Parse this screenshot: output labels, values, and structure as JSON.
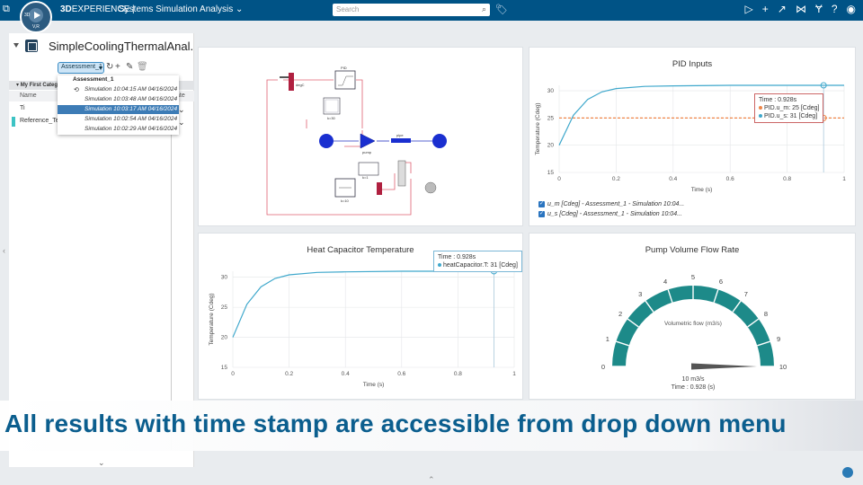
{
  "topbar": {
    "brand_bold": "3D",
    "brand_rest": "EXPERIENCE |",
    "app_title": "Systems Simulation Analysis ⌄",
    "search_placeholder": "Search",
    "compass_label": "3D",
    "compass_version": "V,R",
    "brand_color": "#005386"
  },
  "left_panel": {
    "model_title": "SimpleCoolingThermalAnal...",
    "assessment_select": "Assessment_1",
    "group_header": "My First Categ",
    "column_name": "Name",
    "column_value": "ate",
    "rows": [
      "Ti",
      "Reference_Te..."
    ]
  },
  "dropdown": {
    "header": "Assessment_1",
    "items": [
      "Simulation 10:04:15 AM 04/16/2024",
      "Simulation 10:03:48 AM 04/16/2024",
      "Simulation 10:03:17 AM 04/16/2024",
      "Simulation 10:02:54 AM 04/16/2024",
      "Simulation 10:02:29 AM 04/16/2024"
    ],
    "selected_index": 2
  },
  "diagram": {
    "labels": [
      "degC",
      "PID",
      "k=30",
      "pump",
      "pipe",
      "k=10",
      "k=1"
    ]
  },
  "pid_inputs": {
    "title": "PID Inputs",
    "tooltip_time": "Time : 0.928s",
    "tooltip_m": "PID.u_m: 25 [Cdeg]",
    "tooltip_s": "PID.u_s: 31 [Cdeg]",
    "legend": [
      "u_m [Cdeg] - Assessment_1 - Simulation 10:04...",
      "u_s [Cdeg] - Assessment_1 - Simulation 10:04..."
    ]
  },
  "heat_cap": {
    "title": "Heat Capacitor Temperature",
    "tooltip_time": "Time : 0.928s",
    "tooltip_val": "heatCapacitor.T: 31 [Cdeg]"
  },
  "pump": {
    "title": "Pump Volume Flow Rate",
    "label": "Volumetric flow (m3/s)",
    "value_text": "10 m3/s",
    "time_text": "Time : 0.928 (s)",
    "min": 0,
    "max": 10,
    "value": 10,
    "ticks": [
      "0",
      "1",
      "2",
      "3",
      "4",
      "5",
      "6",
      "7",
      "8",
      "9",
      "10"
    ],
    "arc_color": "#1d8a89"
  },
  "charts_common": {
    "xlabel": "Time (s)",
    "ylabel": "Temperature (Cdeg)"
  },
  "chart_data": [
    {
      "type": "line",
      "title": "PID Inputs",
      "xlabel": "Time (s)",
      "ylabel": "Temperature (Cdeg)",
      "xlim": [
        0,
        1
      ],
      "ylim": [
        15,
        31
      ],
      "x_ticks": [
        "0",
        "0.2",
        "0.4",
        "0.6",
        "0.8",
        "1"
      ],
      "y_ticks": [
        "15",
        "20",
        "25",
        "30"
      ],
      "series": [
        {
          "name": "u_m [Cdeg] - Assessment_1 - Simulation 10:04...",
          "color": "#ef8547",
          "dashed": true,
          "x": [
            0,
            0.1,
            0.2,
            0.4,
            0.6,
            0.8,
            1.0
          ],
          "y": [
            25,
            25,
            25,
            25,
            25,
            25,
            25
          ]
        },
        {
          "name": "u_s [Cdeg] - Assessment_1 - Simulation 10:04...",
          "color": "#3fa8cc",
          "dashed": false,
          "x": [
            0,
            0.05,
            0.1,
            0.15,
            0.2,
            0.3,
            0.4,
            0.6,
            0.8,
            1.0
          ],
          "y": [
            20,
            25.5,
            28.4,
            29.8,
            30.4,
            30.8,
            30.9,
            31,
            31,
            31
          ]
        }
      ],
      "cursor_x": 0.928
    },
    {
      "type": "line",
      "title": "Heat Capacitor Temperature",
      "xlabel": "Time (s)",
      "ylabel": "Temperature (Cdeg)",
      "xlim": [
        0,
        1
      ],
      "ylim": [
        15,
        31
      ],
      "x_ticks": [
        "0",
        "0.2",
        "0.4",
        "0.6",
        "0.8",
        "1"
      ],
      "y_ticks": [
        "15",
        "20",
        "25",
        "30"
      ],
      "series": [
        {
          "name": "heatCapacitor.T",
          "color": "#3fa8cc",
          "dashed": false,
          "x": [
            0,
            0.05,
            0.1,
            0.15,
            0.2,
            0.3,
            0.4,
            0.6,
            0.8,
            1.0
          ],
          "y": [
            20,
            25.5,
            28.4,
            29.8,
            30.4,
            30.8,
            30.9,
            31,
            31,
            31
          ]
        }
      ],
      "cursor_x": 0.928
    },
    {
      "type": "gauge",
      "title": "Pump Volume Flow Rate",
      "min": 0,
      "max": 10,
      "value": 10,
      "unit": "m3/s"
    }
  ],
  "caption": {
    "text": "All results with time stamp are accessible from drop down menu"
  }
}
